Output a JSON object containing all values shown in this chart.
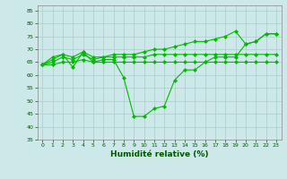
{
  "xlabel": "Humidité relative (%)",
  "bg_color": "#cce8e8",
  "grid_color": "#aacccc",
  "line_color": "#00bb00",
  "marker": "D",
  "markersize": 2.0,
  "linewidth": 0.8,
  "xlim": [
    -0.5,
    23.5
  ],
  "ylim": [
    35,
    87
  ],
  "yticks": [
    35,
    40,
    45,
    50,
    55,
    60,
    65,
    70,
    75,
    80,
    85
  ],
  "xticks": [
    0,
    1,
    2,
    3,
    4,
    5,
    6,
    7,
    8,
    9,
    10,
    11,
    12,
    13,
    14,
    15,
    16,
    17,
    18,
    19,
    20,
    21,
    22,
    23
  ],
  "series": [
    [
      64,
      67,
      68,
      63,
      69,
      65,
      66,
      66,
      59,
      44,
      44,
      47,
      48,
      58,
      62,
      62,
      65,
      67,
      67,
      67,
      72,
      73,
      76,
      76
    ],
    [
      64,
      66,
      68,
      67,
      69,
      67,
      67,
      68,
      68,
      68,
      69,
      70,
      70,
      71,
      72,
      73,
      73,
      74,
      75,
      77,
      72,
      73,
      76,
      76
    ],
    [
      64,
      65,
      67,
      66,
      68,
      66,
      67,
      67,
      67,
      67,
      67,
      68,
      68,
      68,
      68,
      68,
      68,
      68,
      68,
      68,
      68,
      68,
      68,
      68
    ],
    [
      64,
      64,
      65,
      65,
      66,
      65,
      65,
      65,
      65,
      65,
      65,
      65,
      65,
      65,
      65,
      65,
      65,
      65,
      65,
      65,
      65,
      65,
      65,
      65
    ]
  ]
}
